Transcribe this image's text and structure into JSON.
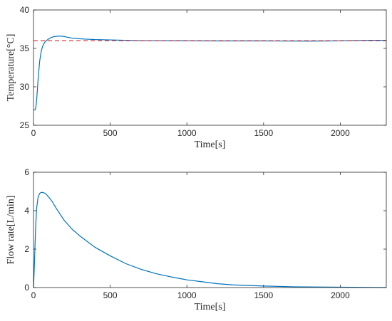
{
  "chart_data": [
    {
      "type": "line",
      "xlabel": "Time[s]",
      "ylabel": "Temperature[°C]",
      "xlim": [
        0,
        2300
      ],
      "ylim": [
        25,
        40
      ],
      "xticks": [
        "0",
        "500",
        "1000",
        "1500",
        "2000"
      ],
      "yticks": [
        "25",
        "30",
        "35",
        "40"
      ],
      "grid": false,
      "series": [
        {
          "color": "#0072bd",
          "style": "solid",
          "x": [
            0,
            5,
            10,
            15,
            20,
            25,
            30,
            40,
            50,
            60,
            70,
            80,
            100,
            120,
            140,
            160,
            180,
            200,
            220,
            250,
            300,
            350,
            400,
            500,
            600,
            700,
            800,
            1000,
            1200,
            1500,
            1800,
            2000,
            2100,
            2200,
            2300
          ],
          "y": [
            27.0,
            27.0,
            27.0,
            27.3,
            28.2,
            29.5,
            31.0,
            33.3,
            34.6,
            35.3,
            35.7,
            35.95,
            36.25,
            36.45,
            36.55,
            36.6,
            36.6,
            36.55,
            36.45,
            36.35,
            36.25,
            36.2,
            36.15,
            36.1,
            36.05,
            36.0,
            36.0,
            35.98,
            35.97,
            35.97,
            35.95,
            35.98,
            36.02,
            36.05,
            36.05
          ]
        },
        {
          "color": "#d62728",
          "style": "dashed",
          "x": [
            0,
            2300
          ],
          "y": [
            36.0,
            36.0
          ]
        }
      ]
    },
    {
      "type": "line",
      "xlabel": "Time[s]",
      "ylabel": "Flow rate[L/min]",
      "xlim": [
        0,
        2300
      ],
      "ylim": [
        0,
        6
      ],
      "xticks": [
        "0",
        "500",
        "1000",
        "1500",
        "2000"
      ],
      "yticks": [
        "0",
        "2",
        "4",
        "6"
      ],
      "grid": false,
      "series": [
        {
          "color": "#0072bd",
          "style": "solid",
          "x": [
            0,
            5,
            10,
            15,
            20,
            30,
            40,
            50,
            60,
            70,
            80,
            100,
            120,
            150,
            200,
            250,
            300,
            400,
            500,
            600,
            700,
            800,
            900,
            1000,
            1100,
            1200,
            1300,
            1500,
            1700,
            2000,
            2300
          ],
          "y": [
            0,
            1.0,
            2.2,
            3.3,
            4.1,
            4.7,
            4.9,
            4.95,
            4.95,
            4.92,
            4.88,
            4.7,
            4.5,
            4.1,
            3.5,
            3.05,
            2.7,
            2.1,
            1.65,
            1.25,
            0.95,
            0.72,
            0.55,
            0.4,
            0.3,
            0.2,
            0.14,
            0.08,
            0.04,
            0.02,
            0.0
          ]
        }
      ]
    }
  ]
}
